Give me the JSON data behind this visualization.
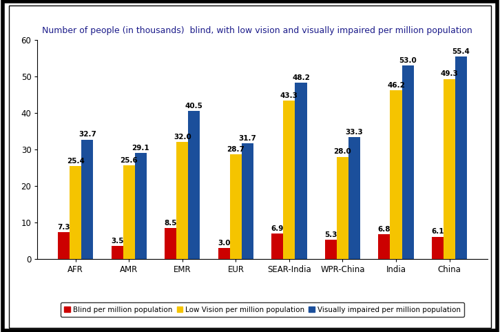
{
  "title": "Number of people (in thousands)  blind, with low vision and visually impaired per million population",
  "categories": [
    "AFR",
    "AMR",
    "EMR",
    "EUR",
    "SEAR-India",
    "WPR-China",
    "India",
    "China"
  ],
  "blind": [
    7.3,
    3.5,
    8.5,
    3.0,
    6.9,
    5.3,
    6.8,
    6.1
  ],
  "low_vision": [
    25.4,
    25.6,
    32.0,
    28.7,
    43.3,
    28.0,
    46.2,
    49.3
  ],
  "visually_impaired": [
    32.7,
    29.1,
    40.5,
    31.7,
    48.2,
    33.3,
    53.0,
    55.4
  ],
  "blind_color": "#CC0000",
  "low_vision_color": "#F5C400",
  "visually_impaired_color": "#1B4F9B",
  "bar_width": 0.22,
  "ylim": [
    0,
    60
  ],
  "yticks": [
    0,
    10,
    20,
    30,
    40,
    50,
    60
  ],
  "legend_labels": [
    "Blind per million population",
    "Low Vision per million population",
    "Visually impaired per million population"
  ],
  "title_fontsize": 9,
  "tick_fontsize": 8.5,
  "label_fontsize": 7.5,
  "background_color": "#FFFFFF"
}
